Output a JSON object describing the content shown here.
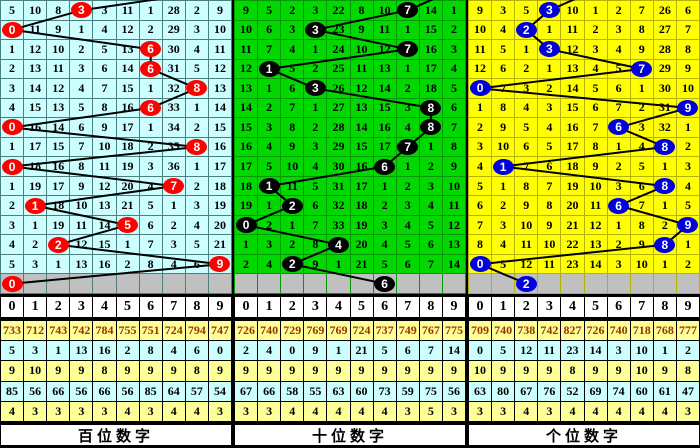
{
  "digit_header": [
    "0",
    "1",
    "2",
    "3",
    "4",
    "5",
    "6",
    "7",
    "8",
    "9"
  ],
  "colors": {
    "gray_row": "#c0c0c0",
    "line": "#000000",
    "summary_yellow": "#ffff99",
    "summary_cyan": "#ccffff",
    "summary_accent_text": "#993300"
  },
  "chart_data": {
    "type": "table",
    "note_visible_panels": [
      "百位数字",
      "十位数字",
      "个位数字"
    ],
    "drawn_digit_sequence": {
      "hundreds": [
        3,
        0,
        6,
        6,
        8,
        6,
        0,
        8,
        0,
        7,
        1,
        5,
        2,
        9,
        0
      ],
      "tens": [
        7,
        3,
        7,
        1,
        3,
        8,
        8,
        7,
        6,
        1,
        2,
        0,
        4,
        2,
        6
      ],
      "units": [
        3,
        2,
        3,
        7,
        0,
        9,
        6,
        8,
        1,
        8,
        6,
        9,
        8,
        0,
        2
      ]
    }
  },
  "panels": [
    {
      "id": "hundreds",
      "label": "百位数字",
      "theme": {
        "cell_bg": "#ccffff",
        "grid": "#4d7f7f",
        "circle": "#ff0000",
        "circle_text": "#ffffff"
      },
      "prev_col": 9,
      "rows": [
        [
          "5",
          "10",
          "8",
          "3",
          "3",
          "11",
          "1",
          "28",
          "2",
          "9"
        ],
        [
          "0",
          "11",
          "9",
          "1",
          "4",
          "12",
          "2",
          "29",
          "3",
          "10"
        ],
        [
          "1",
          "12",
          "10",
          "2",
          "5",
          "13",
          "6",
          "30",
          "4",
          "11"
        ],
        [
          "2",
          "13",
          "11",
          "3",
          "6",
          "14",
          "6",
          "31",
          "5",
          "12"
        ],
        [
          "3",
          "14",
          "12",
          "4",
          "7",
          "15",
          "1",
          "32",
          "8",
          "13"
        ],
        [
          "4",
          "15",
          "13",
          "5",
          "8",
          "16",
          "6",
          "33",
          "1",
          "14"
        ],
        [
          "0",
          "16",
          "14",
          "6",
          "9",
          "17",
          "1",
          "34",
          "2",
          "15"
        ],
        [
          "1",
          "17",
          "15",
          "7",
          "10",
          "18",
          "2",
          "35",
          "8",
          "16"
        ],
        [
          "0",
          "18",
          "16",
          "8",
          "11",
          "19",
          "3",
          "36",
          "1",
          "17"
        ],
        [
          "1",
          "19",
          "17",
          "9",
          "12",
          "20",
          "4",
          "7",
          "2",
          "18"
        ],
        [
          "2",
          "1",
          "18",
          "10",
          "13",
          "21",
          "5",
          "1",
          "3",
          "19"
        ],
        [
          "3",
          "1",
          "19",
          "11",
          "14",
          "5",
          "6",
          "2",
          "4",
          "20"
        ],
        [
          "4",
          "2",
          "2",
          "12",
          "15",
          "1",
          "7",
          "3",
          "5",
          "21"
        ],
        [
          "5",
          "3",
          "1",
          "13",
          "16",
          "2",
          "8",
          "4",
          "6",
          "9"
        ]
      ],
      "hit_cols": [
        3,
        0,
        6,
        6,
        8,
        6,
        0,
        8,
        0,
        7,
        1,
        5,
        2,
        9
      ],
      "gray_hit_col": 0,
      "summary_rows": [
        [
          "733",
          "712",
          "743",
          "742",
          "784",
          "755",
          "751",
          "724",
          "794",
          "747"
        ],
        [
          "5",
          "3",
          "1",
          "13",
          "16",
          "2",
          "8",
          "4",
          "6",
          "0"
        ],
        [
          "9",
          "10",
          "9",
          "9",
          "8",
          "9",
          "9",
          "9",
          "8",
          "9"
        ],
        [
          "85",
          "56",
          "66",
          "56",
          "66",
          "56",
          "85",
          "64",
          "57",
          "54"
        ],
        [
          "4",
          "3",
          "3",
          "3",
          "3",
          "4",
          "3",
          "4",
          "4",
          "3"
        ]
      ]
    },
    {
      "id": "tens",
      "label": "十位数字",
      "theme": {
        "cell_bg": "#00d800",
        "grid": "#009900",
        "circle": "#000000",
        "circle_text": "#ffffff"
      },
      "prev_col": 9,
      "rows": [
        [
          "9",
          "5",
          "2",
          "3",
          "22",
          "8",
          "10",
          "7",
          "14",
          "1"
        ],
        [
          "10",
          "6",
          "3",
          "3",
          "23",
          "9",
          "11",
          "1",
          "15",
          "2"
        ],
        [
          "11",
          "7",
          "4",
          "1",
          "24",
          "10",
          "12",
          "7",
          "16",
          "3"
        ],
        [
          "12",
          "1",
          "5",
          "2",
          "25",
          "11",
          "13",
          "1",
          "17",
          "4"
        ],
        [
          "13",
          "1",
          "6",
          "3",
          "26",
          "12",
          "14",
          "2",
          "18",
          "5"
        ],
        [
          "14",
          "2",
          "7",
          "1",
          "27",
          "13",
          "15",
          "3",
          "8",
          "6"
        ],
        [
          "15",
          "3",
          "8",
          "2",
          "28",
          "14",
          "16",
          "4",
          "8",
          "7"
        ],
        [
          "16",
          "4",
          "9",
          "3",
          "29",
          "15",
          "17",
          "7",
          "1",
          "8"
        ],
        [
          "17",
          "5",
          "10",
          "4",
          "30",
          "16",
          "6",
          "1",
          "2",
          "9"
        ],
        [
          "18",
          "1",
          "11",
          "5",
          "31",
          "17",
          "1",
          "2",
          "3",
          "10"
        ],
        [
          "19",
          "1",
          "2",
          "6",
          "32",
          "18",
          "2",
          "3",
          "4",
          "11"
        ],
        [
          "0",
          "2",
          "1",
          "7",
          "33",
          "19",
          "3",
          "4",
          "5",
          "12"
        ],
        [
          "1",
          "3",
          "2",
          "8",
          "4",
          "20",
          "4",
          "5",
          "6",
          "13"
        ],
        [
          "2",
          "4",
          "2",
          "9",
          "1",
          "21",
          "5",
          "6",
          "7",
          "14"
        ]
      ],
      "hit_cols": [
        7,
        3,
        7,
        1,
        3,
        8,
        8,
        7,
        6,
        1,
        2,
        0,
        4,
        2
      ],
      "gray_hit_col": 6,
      "summary_rows": [
        [
          "726",
          "740",
          "729",
          "769",
          "769",
          "724",
          "737",
          "749",
          "767",
          "775"
        ],
        [
          "2",
          "4",
          "0",
          "9",
          "1",
          "21",
          "5",
          "6",
          "7",
          "14"
        ],
        [
          "9",
          "9",
          "9",
          "9",
          "9",
          "9",
          "9",
          "9",
          "9",
          "9"
        ],
        [
          "67",
          "66",
          "58",
          "55",
          "63",
          "60",
          "73",
          "59",
          "75",
          "56"
        ],
        [
          "3",
          "3",
          "4",
          "4",
          "4",
          "4",
          "4",
          "3",
          "5",
          "3"
        ]
      ]
    },
    {
      "id": "units",
      "label": "个位数字",
      "theme": {
        "cell_bg": "#ffff00",
        "grid": "#b3b300",
        "circle": "#0000dd",
        "circle_text": "#ffffff"
      },
      "prev_col": 5,
      "rows": [
        [
          "9",
          "3",
          "5",
          "3",
          "10",
          "1",
          "2",
          "7",
          "26",
          "6"
        ],
        [
          "10",
          "4",
          "2",
          "1",
          "11",
          "2",
          "3",
          "8",
          "27",
          "7"
        ],
        [
          "11",
          "5",
          "1",
          "3",
          "12",
          "3",
          "4",
          "9",
          "28",
          "8"
        ],
        [
          "12",
          "6",
          "2",
          "1",
          "13",
          "4",
          "5",
          "7",
          "29",
          "9"
        ],
        [
          "0",
          "7",
          "3",
          "2",
          "14",
          "5",
          "6",
          "1",
          "30",
          "10"
        ],
        [
          "1",
          "8",
          "4",
          "3",
          "15",
          "6",
          "7",
          "2",
          "31",
          "9"
        ],
        [
          "2",
          "9",
          "5",
          "4",
          "16",
          "7",
          "6",
          "3",
          "32",
          "1"
        ],
        [
          "3",
          "10",
          "6",
          "5",
          "17",
          "8",
          "1",
          "4",
          "8",
          "2"
        ],
        [
          "4",
          "1",
          "7",
          "6",
          "18",
          "9",
          "2",
          "5",
          "1",
          "3"
        ],
        [
          "5",
          "1",
          "8",
          "7",
          "19",
          "10",
          "3",
          "6",
          "8",
          "4"
        ],
        [
          "6",
          "2",
          "9",
          "8",
          "20",
          "11",
          "6",
          "7",
          "1",
          "5"
        ],
        [
          "7",
          "3",
          "10",
          "9",
          "21",
          "12",
          "1",
          "8",
          "2",
          "9"
        ],
        [
          "8",
          "4",
          "11",
          "10",
          "22",
          "13",
          "2",
          "9",
          "8",
          "1"
        ],
        [
          "0",
          "5",
          "12",
          "11",
          "23",
          "14",
          "3",
          "10",
          "1",
          "2"
        ]
      ],
      "hit_cols": [
        3,
        2,
        3,
        7,
        0,
        9,
        6,
        8,
        1,
        8,
        6,
        9,
        8,
        0
      ],
      "gray_hit_col": 2,
      "summary_rows": [
        [
          "709",
          "740",
          "738",
          "742",
          "827",
          "726",
          "740",
          "718",
          "768",
          "777"
        ],
        [
          "0",
          "5",
          "12",
          "11",
          "23",
          "14",
          "3",
          "10",
          "1",
          "2"
        ],
        [
          "10",
          "9",
          "9",
          "9",
          "8",
          "9",
          "9",
          "10",
          "9",
          "8"
        ],
        [
          "63",
          "80",
          "67",
          "76",
          "52",
          "69",
          "74",
          "60",
          "61",
          "47"
        ],
        [
          "3",
          "3",
          "4",
          "3",
          "4",
          "4",
          "4",
          "4",
          "4",
          "3"
        ]
      ]
    }
  ]
}
